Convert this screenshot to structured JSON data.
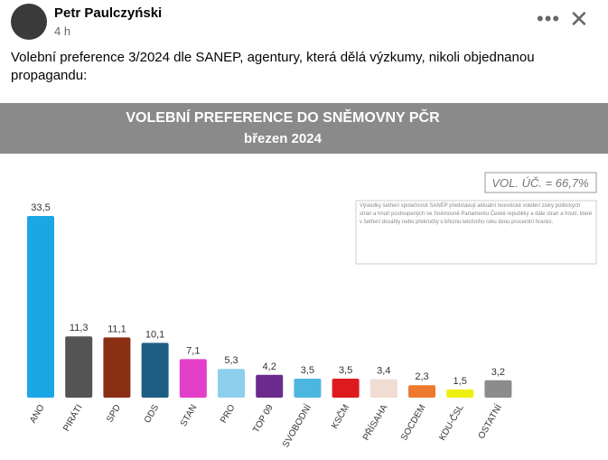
{
  "post": {
    "author": "Petr Paulczyński",
    "time": "4 h",
    "text": "Volební preference 3/2024 dle SANEP, agentury, která dělá výzkumy, nikoli objednanou propagandu:"
  },
  "chart_data": {
    "type": "bar",
    "title": "VOLEBNÍ PREFERENCE DO SNĚMOVNY PČR",
    "subtitle": "březen 2024",
    "annotations": [
      "VOL. ÚČ. = 66,7%",
      "Výsledky šetření společnosti SANEP představují aktuální teoretické volební zisky politických stran a hnutí postoupených ve Sněmovně Parlamentu České republiky a dále stran a hnutí, které v šetření dosáhly nebo překročily v březnu letošního roku dvou procentní hranici."
    ],
    "categories": [
      "ANO",
      "PIRÁTI",
      "SPD",
      "ODS",
      "STAN",
      "PRO",
      "TOP 09",
      "SVOBODNÍ",
      "KSČM",
      "PŘÍSAHA",
      "SOCDEM",
      "KDU-ČSL",
      "OSTATNÍ"
    ],
    "values": [
      33.5,
      11.3,
      11.1,
      10.1,
      7.1,
      5.3,
      4.2,
      3.5,
      3.5,
      3.4,
      2.3,
      1.5,
      3.2
    ],
    "value_labels": [
      "33,5",
      "11,3",
      "11,1",
      "10,1",
      "7,1",
      "5,3",
      "4,2",
      "3,5",
      "3,5",
      "3,4",
      "2,3",
      "1,5",
      "3,2"
    ],
    "colors": [
      "#1ba7e6",
      "#545454",
      "#8a2f14",
      "#1e5e84",
      "#e43fc8",
      "#8ecfee",
      "#6a2b8c",
      "#4db6df",
      "#dd1a1e",
      "#f0dcd2",
      "#ee7a2f",
      "#eeee10",
      "#8c8c8c"
    ]
  }
}
